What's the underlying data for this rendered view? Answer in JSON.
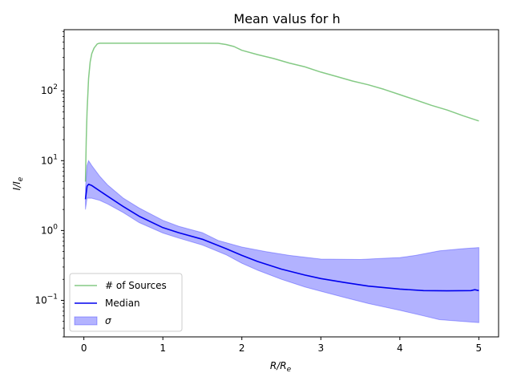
{
  "chart_data": {
    "type": "line",
    "title": "Mean valus for h",
    "xlabel": "R/R_e",
    "ylabel": "I/I_e",
    "xlim": [
      -0.25,
      5.25
    ],
    "ylim": [
      0.03,
      750
    ],
    "yscale": "log",
    "grid": false,
    "legend_position": "lower-left",
    "x_ticks": [
      0,
      1,
      2,
      3,
      4,
      5
    ],
    "y_ticks": [
      0.1,
      1,
      10,
      100
    ],
    "series": [
      {
        "name": "# of Sources",
        "style": "line",
        "color": "#5cb85c",
        "points": [
          [
            0.02,
            5
          ],
          [
            0.03,
            20
          ],
          [
            0.04,
            50
          ],
          [
            0.06,
            150
          ],
          [
            0.08,
            260
          ],
          [
            0.1,
            340
          ],
          [
            0.13,
            410
          ],
          [
            0.17,
            470
          ],
          [
            0.2,
            480
          ],
          [
            0.5,
            480
          ],
          [
            1.0,
            480
          ],
          [
            1.5,
            480
          ],
          [
            1.7,
            478
          ],
          [
            1.8,
            460
          ],
          [
            1.9,
            430
          ],
          [
            2.0,
            380
          ],
          [
            2.2,
            330
          ],
          [
            2.4,
            290
          ],
          [
            2.6,
            250
          ],
          [
            2.8,
            220
          ],
          [
            3.0,
            185
          ],
          [
            3.2,
            160
          ],
          [
            3.4,
            138
          ],
          [
            3.6,
            122
          ],
          [
            3.8,
            105
          ],
          [
            4.0,
            88
          ],
          [
            4.2,
            74
          ],
          [
            4.4,
            62
          ],
          [
            4.6,
            53
          ],
          [
            4.8,
            44
          ],
          [
            5.0,
            37
          ]
        ]
      },
      {
        "name": "Median",
        "style": "line",
        "color": "#0000ee",
        "points": [
          [
            0.02,
            2.8
          ],
          [
            0.04,
            4.3
          ],
          [
            0.06,
            4.6
          ],
          [
            0.1,
            4.4
          ],
          [
            0.2,
            3.7
          ],
          [
            0.3,
            3.1
          ],
          [
            0.5,
            2.2
          ],
          [
            0.7,
            1.6
          ],
          [
            1.0,
            1.1
          ],
          [
            1.2,
            0.93
          ],
          [
            1.5,
            0.75
          ],
          [
            1.8,
            0.55
          ],
          [
            2.0,
            0.44
          ],
          [
            2.2,
            0.36
          ],
          [
            2.5,
            0.28
          ],
          [
            2.8,
            0.23
          ],
          [
            3.0,
            0.205
          ],
          [
            3.3,
            0.18
          ],
          [
            3.6,
            0.16
          ],
          [
            4.0,
            0.145
          ],
          [
            4.3,
            0.138
          ],
          [
            4.6,
            0.137
          ],
          [
            4.9,
            0.138
          ],
          [
            4.95,
            0.142
          ],
          [
            5.0,
            0.138
          ]
        ]
      },
      {
        "name": "σ",
        "style": "band",
        "color": "#0000ff",
        "upper": [
          [
            0.02,
            4.0
          ],
          [
            0.04,
            8.5
          ],
          [
            0.06,
            10.0
          ],
          [
            0.1,
            8.5
          ],
          [
            0.2,
            6.0
          ],
          [
            0.3,
            4.5
          ],
          [
            0.5,
            2.9
          ],
          [
            0.7,
            2.1
          ],
          [
            1.0,
            1.4
          ],
          [
            1.2,
            1.15
          ],
          [
            1.5,
            0.93
          ],
          [
            1.7,
            0.72
          ],
          [
            2.0,
            0.58
          ],
          [
            2.3,
            0.5
          ],
          [
            2.6,
            0.44
          ],
          [
            3.0,
            0.39
          ],
          [
            3.5,
            0.385
          ],
          [
            3.8,
            0.4
          ],
          [
            4.0,
            0.41
          ],
          [
            4.2,
            0.44
          ],
          [
            4.5,
            0.51
          ],
          [
            4.8,
            0.55
          ],
          [
            5.0,
            0.57
          ]
        ],
        "lower": [
          [
            0.02,
            2.0
          ],
          [
            0.04,
            2.9
          ],
          [
            0.1,
            2.9
          ],
          [
            0.2,
            2.7
          ],
          [
            0.3,
            2.4
          ],
          [
            0.5,
            1.8
          ],
          [
            0.7,
            1.3
          ],
          [
            1.0,
            0.92
          ],
          [
            1.2,
            0.78
          ],
          [
            1.5,
            0.62
          ],
          [
            1.8,
            0.45
          ],
          [
            2.0,
            0.34
          ],
          [
            2.2,
            0.27
          ],
          [
            2.5,
            0.2
          ],
          [
            2.8,
            0.155
          ],
          [
            3.0,
            0.135
          ],
          [
            3.3,
            0.11
          ],
          [
            3.6,
            0.09
          ],
          [
            4.0,
            0.072
          ],
          [
            4.3,
            0.06
          ],
          [
            4.5,
            0.053
          ],
          [
            4.8,
            0.05
          ],
          [
            5.0,
            0.048
          ]
        ]
      }
    ]
  },
  "legend": [
    {
      "label": "# of Sources",
      "kind": "line",
      "color": "#5cb85c"
    },
    {
      "label": "Median",
      "kind": "line",
      "color": "#0000ee"
    },
    {
      "label": "σ",
      "kind": "patch",
      "color": "#8080ff"
    }
  ]
}
